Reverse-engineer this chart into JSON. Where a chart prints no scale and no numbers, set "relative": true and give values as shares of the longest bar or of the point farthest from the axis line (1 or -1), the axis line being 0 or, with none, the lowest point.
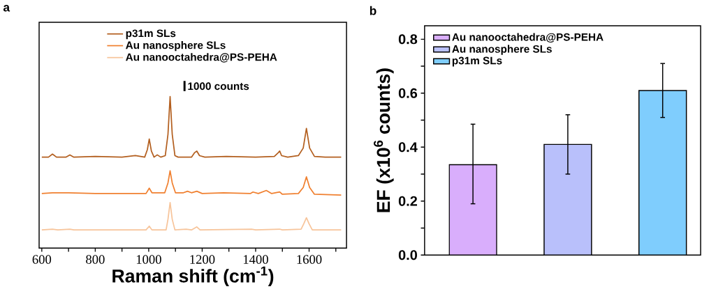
{
  "chart_data": [
    {
      "type": "line",
      "title": "a",
      "xlabel": "Raman shift (cm$^{-1}$)",
      "relative": true,
      "legend": "top",
      "xlim": [
        590,
        1740
      ],
      "xticks": [
        600,
        {
          "value": 700,
          "label": null
        },
        800,
        {
          "value": 900,
          "label": null
        },
        1000,
        {
          "value": 1100,
          "label": null
        },
        1200,
        {
          "value": 1300,
          "label": null
        },
        1400,
        {
          "value": 1500,
          "label": null
        },
        1600,
        {
          "value": 1700,
          "label": null
        }
      ],
      "annotations": [
        "1000 counts"
      ],
      "series": [
        {
          "name": "p31m SLs",
          "color": "#b35f1f",
          "x": [
            600,
            625,
            640,
            655,
            690,
            705,
            720,
            800,
            900,
            950,
            985,
            995,
            1002,
            1010,
            1020,
            1032,
            1045,
            1062,
            1072,
            1080,
            1088,
            1098,
            1110,
            1160,
            1172,
            1180,
            1190,
            1210,
            1290,
            1400,
            1470,
            1485,
            1490,
            1497,
            1520,
            1560,
            1578,
            1590,
            1602,
            1620,
            1660,
            1720
          ],
          "values": [
            0.6,
            0.6,
            0.62,
            0.6,
            0.6,
            0.615,
            0.6,
            0.605,
            0.6,
            0.61,
            0.6,
            0.65,
            0.72,
            0.64,
            0.6,
            0.615,
            0.6,
            0.61,
            0.75,
            1.0,
            0.75,
            0.61,
            0.6,
            0.6,
            0.63,
            0.64,
            0.61,
            0.6,
            0.605,
            0.6,
            0.605,
            0.63,
            0.64,
            0.61,
            0.6,
            0.61,
            0.66,
            0.79,
            0.66,
            0.605,
            0.6,
            0.6
          ]
        },
        {
          "name": "Au nanosphere SLs",
          "color": "#f08030",
          "x": [
            600,
            640,
            700,
            800,
            900,
            990,
            1002,
            1012,
            1030,
            1060,
            1072,
            1080,
            1088,
            1100,
            1130,
            1145,
            1160,
            1180,
            1200,
            1280,
            1380,
            1390,
            1410,
            1440,
            1460,
            1490,
            1500,
            1560,
            1578,
            1590,
            1602,
            1620,
            1720
          ],
          "values": [
            0.36,
            0.365,
            0.365,
            0.36,
            0.36,
            0.36,
            0.395,
            0.365,
            0.365,
            0.365,
            0.43,
            0.51,
            0.43,
            0.365,
            0.365,
            0.375,
            0.365,
            0.375,
            0.36,
            0.365,
            0.36,
            0.37,
            0.36,
            0.38,
            0.36,
            0.37,
            0.355,
            0.36,
            0.4,
            0.47,
            0.4,
            0.355,
            0.35
          ]
        },
        {
          "name": "Au nanooctahedra@PS-PEHA",
          "color": "#f7c49a",
          "x": [
            600,
            640,
            660,
            705,
            720,
            990,
            1002,
            1012,
            1065,
            1072,
            1080,
            1088,
            1098,
            1140,
            1160,
            1180,
            1192,
            1385,
            1400,
            1490,
            1500,
            1570,
            1580,
            1590,
            1600,
            1612,
            1720
          ],
          "values": [
            0.12,
            0.125,
            0.12,
            0.125,
            0.12,
            0.12,
            0.145,
            0.12,
            0.12,
            0.19,
            0.3,
            0.19,
            0.12,
            0.125,
            0.12,
            0.14,
            0.12,
            0.125,
            0.12,
            0.125,
            0.12,
            0.125,
            0.16,
            0.2,
            0.16,
            0.12,
            0.12
          ]
        }
      ]
    },
    {
      "type": "bar",
      "title": "b",
      "ylabel": "EF (x10$^{6}$ counts)",
      "legend": "top left",
      "tick_labels": "y",
      "stacked": true,
      "categories": [
        null,
        null,
        null
      ],
      "ylim": [
        0,
        0.85
      ],
      "yticks": [
        {
          "value": 0,
          "label": "0.0"
        },
        {
          "value": 0.1,
          "label": null
        },
        {
          "value": 0.2,
          "label": "0.2"
        },
        {
          "value": 0.3,
          "label": null
        },
        {
          "value": 0.4,
          "label": "0.4"
        },
        {
          "value": 0.5,
          "label": null
        },
        {
          "value": 0.6,
          "label": "0.6"
        },
        {
          "value": 0.7,
          "label": null
        },
        {
          "value": 0.8,
          "label": "0.8"
        }
      ],
      "series": [
        {
          "name": "Au nanooctahedra@PS-PEHA",
          "color": "#d9aefc",
          "values": [
            0.335,
            null,
            null
          ],
          "errors": [
            [
              0.19,
              0.485
            ],
            null,
            null
          ]
        },
        {
          "name": "Au nanosphere SLs",
          "color": "#b9c0fb",
          "values": [
            null,
            0.41,
            null
          ],
          "errors": [
            null,
            [
              0.3,
              0.52
            ],
            null
          ]
        },
        {
          "name": "p31m SLs",
          "color": "#7fcdfd",
          "values": [
            null,
            null,
            0.61
          ],
          "errors": [
            null,
            null,
            [
              0.51,
              0.71
            ]
          ]
        }
      ]
    }
  ]
}
